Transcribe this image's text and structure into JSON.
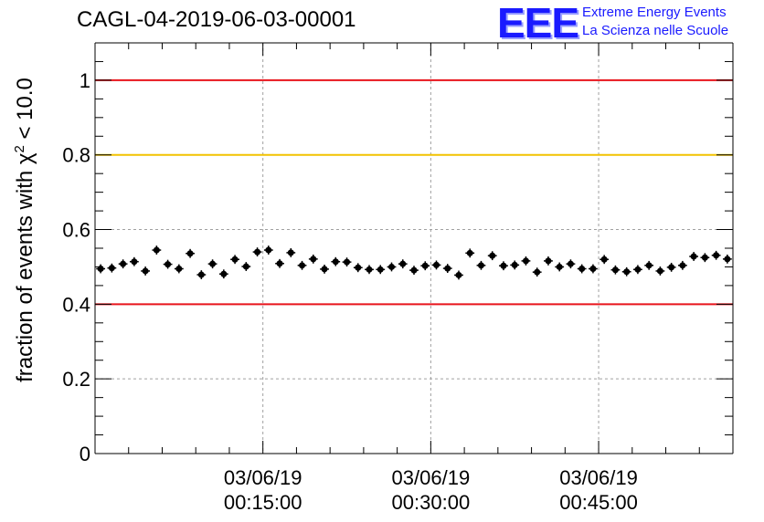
{
  "header": {
    "title": "CAGL-04-2019-06-03-00001"
  },
  "logo": {
    "mark": "EEE",
    "line1": "Extreme Energy Events",
    "line2": "La Scienza nelle Scuole",
    "color": "#1a1aff"
  },
  "chart_data": {
    "type": "scatter",
    "title": "CAGL-04-2019-06-03-00001",
    "xlabel": "",
    "ylabel": "fraction of events with χ² < 10.0",
    "ylabel_parts": {
      "pre": "fraction of events with ",
      "sym": "χ",
      "sup": "2",
      "post": " < 10.0"
    },
    "xlim_minutes": [
      0,
      57
    ],
    "ylim": [
      0,
      1.1
    ],
    "x_unit": "minutes after 03/06/19 00:00:00",
    "xticks": [
      {
        "x": 15,
        "date": "03/06/19",
        "time": "00:15:00"
      },
      {
        "x": 30,
        "date": "03/06/19",
        "time": "00:30:00"
      },
      {
        "x": 45,
        "date": "03/06/19",
        "time": "00:45:00"
      }
    ],
    "yticks": [
      "0",
      "0.2",
      "0.4",
      "0.6",
      "0.8",
      "1"
    ],
    "ytick_values": [
      0,
      0.2,
      0.4,
      0.6,
      0.8,
      1.0
    ],
    "reference_lines": [
      {
        "y": 1.0,
        "color": "#e8141c"
      },
      {
        "y": 0.8,
        "color": "#f2c200"
      },
      {
        "y": 0.4,
        "color": "#e8141c"
      }
    ],
    "grid": true,
    "point_color": "#000000",
    "y_error": 0.012,
    "x_halfwidth_minutes": 0.4,
    "series": [
      {
        "x": [
          0.5,
          1.5,
          2.5,
          3.5,
          4.5,
          5.5,
          6.5,
          7.5,
          8.5,
          9.5,
          10.5,
          11.5,
          12.5,
          13.5,
          14.5,
          15.5,
          16.5,
          17.5,
          18.5,
          19.5,
          20.5,
          21.5,
          22.5,
          23.5,
          24.5,
          25.5,
          26.5,
          27.5,
          28.5,
          29.5,
          30.5,
          31.5,
          32.5,
          33.5,
          34.5,
          35.5,
          36.5,
          37.5,
          38.5,
          39.5,
          40.5,
          41.5,
          42.5,
          43.5,
          44.5,
          45.5,
          46.5,
          47.5,
          48.5,
          49.5,
          50.5,
          51.5,
          52.5,
          53.5,
          54.5,
          55.5,
          56.5
        ],
        "y": [
          0.495,
          0.497,
          0.508,
          0.514,
          0.489,
          0.545,
          0.507,
          0.495,
          0.536,
          0.479,
          0.508,
          0.481,
          0.52,
          0.501,
          0.54,
          0.545,
          0.509,
          0.538,
          0.504,
          0.521,
          0.494,
          0.514,
          0.513,
          0.498,
          0.493,
          0.493,
          0.5,
          0.508,
          0.491,
          0.503,
          0.505,
          0.496,
          0.478,
          0.537,
          0.504,
          0.53,
          0.503,
          0.505,
          0.516,
          0.486,
          0.516,
          0.5,
          0.508,
          0.495,
          0.495,
          0.52,
          0.492,
          0.487,
          0.493,
          0.504,
          0.489,
          0.499,
          0.504,
          0.528,
          0.525,
          0.531,
          0.521
        ]
      }
    ]
  }
}
